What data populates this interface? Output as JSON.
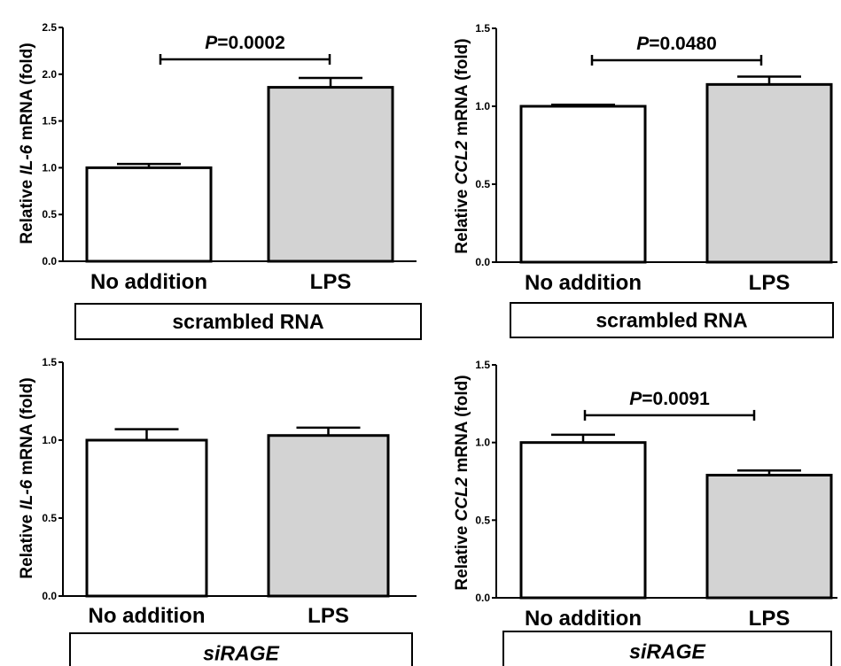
{
  "chart_data": [
    {
      "type": "bar",
      "categories": [
        "No addition",
        "LPS"
      ],
      "values": [
        1.0,
        1.86
      ],
      "errors": [
        0.04,
        0.1
      ],
      "ylim": [
        0,
        2.5
      ],
      "yticks": [
        "0.0",
        "0.5",
        "1.0",
        "1.5",
        "2.0",
        "2.5"
      ],
      "ylabel": {
        "pre": "Relative ",
        "gene": "IL-6",
        "post": " mRNA (fold)"
      },
      "pvalue": {
        "label": "P",
        "value": "=0.0002"
      },
      "condition": "scrambled RNA",
      "condition_italic": false,
      "bar_colors": [
        "#ffffff",
        "#d3d3d3"
      ]
    },
    {
      "type": "bar",
      "categories": [
        "No addition",
        "LPS"
      ],
      "values": [
        1.0,
        1.14
      ],
      "errors": [
        0.01,
        0.05
      ],
      "ylim": [
        0,
        1.5
      ],
      "yticks": [
        "0.0",
        "0.5",
        "1.0",
        "1.5"
      ],
      "ylabel": {
        "pre": "Relative ",
        "gene": "CCL2",
        "post": " mRNA (fold)"
      },
      "pvalue": {
        "label": "P",
        "value": "=0.0480"
      },
      "condition": "scrambled RNA",
      "condition_italic": false,
      "bar_colors": [
        "#ffffff",
        "#d3d3d3"
      ]
    },
    {
      "type": "bar",
      "categories": [
        "No addition",
        "LPS"
      ],
      "values": [
        1.0,
        1.03
      ],
      "errors": [
        0.07,
        0.05
      ],
      "ylim": [
        0,
        1.5
      ],
      "yticks": [
        "0.0",
        "0.5",
        "1.0",
        "1.5"
      ],
      "ylabel": {
        "pre": "Relative ",
        "gene": "IL-6",
        "post": " mRNA (fold)"
      },
      "pvalue": null,
      "condition": "siRAGE",
      "condition_italic": true,
      "bar_colors": [
        "#ffffff",
        "#d3d3d3"
      ]
    },
    {
      "type": "bar",
      "categories": [
        "No addition",
        "LPS"
      ],
      "values": [
        1.0,
        0.79
      ],
      "errors": [
        0.05,
        0.03
      ],
      "ylim": [
        0,
        1.5
      ],
      "yticks": [
        "0.0",
        "0.5",
        "1.0",
        "1.5"
      ],
      "ylabel": {
        "pre": "Relative ",
        "gene": "CCL2",
        "post": " mRNA (fold)"
      },
      "pvalue": {
        "label": "P",
        "value": "=0.0091"
      },
      "condition": "siRAGE",
      "condition_italic": true,
      "bar_colors": [
        "#ffffff",
        "#d3d3d3"
      ]
    }
  ]
}
